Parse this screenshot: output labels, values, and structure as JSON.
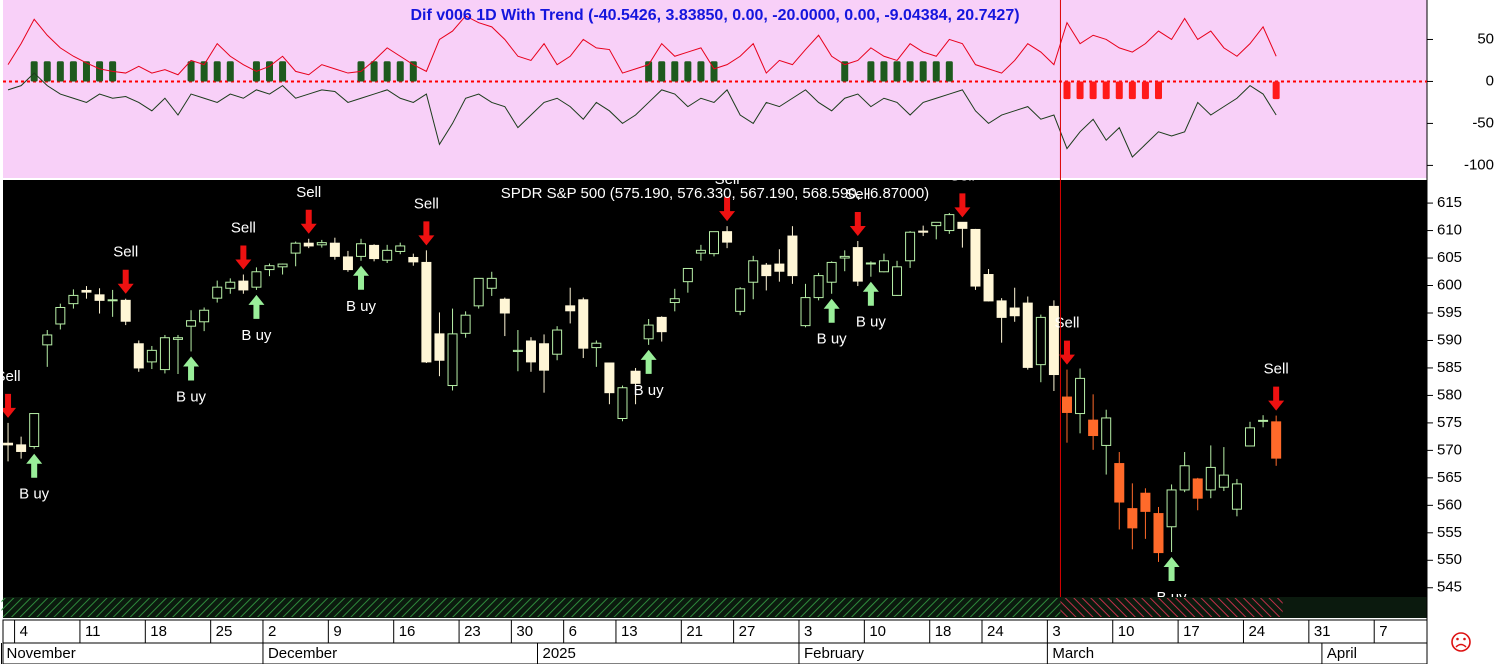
{
  "chart_data": [
    {
      "type": "indicator",
      "title": "Dif v006 1D With Trend (-40.5426, 3.83850, 0.00, -20.0000, 0.00, -9.04384, 20.7427)",
      "background": "#f8d0f8",
      "zero_line_color": "#ff0000",
      "ylim": [
        -115,
        97
      ],
      "yticks": [
        50,
        0,
        -50,
        -100
      ],
      "series": [
        {
          "color": "#e8001c",
          "values": [
            20,
            45,
            74,
            55,
            40,
            30,
            22,
            15,
            12,
            10,
            18,
            10,
            14,
            8,
            25,
            20,
            45,
            30,
            20,
            12,
            18,
            30,
            12,
            8,
            20,
            15,
            10,
            12,
            25,
            40,
            30,
            20,
            12,
            50,
            60,
            78,
            70,
            65,
            50,
            30,
            25,
            45,
            20,
            30,
            50,
            40,
            38,
            10,
            15,
            20,
            45,
            30,
            35,
            40,
            15,
            20,
            30,
            45,
            10,
            25,
            20,
            38,
            55,
            30,
            20,
            25,
            40,
            30,
            25,
            45,
            35,
            30,
            50,
            45,
            20,
            15,
            10,
            25,
            45,
            35,
            20,
            70,
            45,
            55,
            50,
            40,
            35,
            45,
            60,
            50,
            75,
            50,
            60,
            40,
            30,
            45,
            65,
            30,
            null,
            null,
            null,
            null,
            null,
            null,
            null,
            null,
            null,
            null,
            null
          ]
        },
        {
          "color": "#1c3c1c",
          "values": [
            -10,
            -5,
            10,
            -5,
            -15,
            -20,
            -25,
            -15,
            -20,
            -18,
            -25,
            -35,
            -20,
            -40,
            -15,
            -20,
            -25,
            -15,
            -20,
            -10,
            -15,
            -5,
            -20,
            -15,
            -10,
            -12,
            -25,
            -20,
            -15,
            -10,
            -20,
            -25,
            -15,
            -75,
            -50,
            -20,
            -15,
            -25,
            -30,
            -55,
            -40,
            -25,
            -20,
            -30,
            -45,
            -25,
            -35,
            -50,
            -40,
            -25,
            -10,
            -15,
            -30,
            -20,
            -25,
            -10,
            -40,
            -50,
            -25,
            -30,
            -20,
            -10,
            -25,
            -35,
            -20,
            -15,
            -30,
            -20,
            -25,
            -40,
            -25,
            -20,
            -15,
            -10,
            -35,
            -50,
            -40,
            -35,
            -30,
            -45,
            -40,
            -80,
            -60,
            -45,
            -70,
            -55,
            -90,
            -75,
            -60,
            -65,
            -60,
            -25,
            -40,
            -30,
            -20,
            -5,
            -15,
            -40,
            null,
            null,
            null,
            null,
            null,
            null,
            null,
            null,
            null,
            null,
            null
          ]
        }
      ],
      "bars": {
        "up_color": "#1e5a1e",
        "down_color": "#ff1a1a",
        "values": [
          null,
          null,
          24,
          24,
          24,
          24,
          24,
          24,
          24,
          null,
          null,
          null,
          null,
          null,
          24,
          24,
          24,
          24,
          null,
          24,
          24,
          24,
          null,
          null,
          null,
          null,
          null,
          24,
          24,
          24,
          24,
          24,
          null,
          null,
          null,
          null,
          null,
          null,
          null,
          null,
          null,
          null,
          null,
          null,
          null,
          null,
          null,
          null,
          null,
          24,
          24,
          24,
          24,
          24,
          24,
          null,
          null,
          null,
          null,
          null,
          null,
          null,
          null,
          null,
          24,
          null,
          24,
          24,
          24,
          24,
          24,
          24,
          24,
          null,
          null,
          null,
          null,
          null,
          null,
          null,
          null,
          -21,
          -21,
          -21,
          -21,
          -21,
          -21,
          -21,
          -21,
          null,
          null,
          null,
          null,
          null,
          null,
          null,
          null,
          -21,
          null,
          null,
          null,
          null,
          null,
          null,
          null,
          null,
          null,
          null,
          null
        ]
      }
    },
    {
      "type": "candlestick",
      "title": "SPDR S&P 500 (575.190, 576.330, 567.190, 568.590, -6.87000)",
      "background": "#000000",
      "up_color": "#b8f0a8",
      "categories": [
        null,
        "4",
        null,
        null,
        null,
        null,
        "11",
        null,
        null,
        null,
        null,
        "18",
        null,
        null,
        null,
        null,
        "25",
        null,
        null,
        null,
        "2",
        null,
        null,
        null,
        null,
        "9",
        null,
        null,
        null,
        null,
        "16",
        null,
        null,
        null,
        null,
        "23",
        null,
        null,
        null,
        "30",
        null,
        null,
        null,
        "6",
        null,
        null,
        null,
        "13",
        null,
        null,
        null,
        null,
        "21",
        null,
        null,
        null,
        "27",
        null,
        null,
        null,
        null,
        "3",
        null,
        null,
        null,
        null,
        "10",
        null,
        null,
        null,
        null,
        "18",
        null,
        null,
        null,
        "24",
        null,
        null,
        null,
        null,
        "3",
        null,
        null,
        null,
        null,
        "10",
        null,
        null,
        null,
        null,
        "17",
        null,
        null,
        null,
        null,
        "24",
        null,
        null,
        null,
        null,
        "31",
        null,
        null,
        null,
        null,
        "7",
        null,
        null,
        null
      ],
      "month_labels": [
        {
          "index": 0,
          "label": "November"
        },
        {
          "index": 20,
          "label": "December"
        },
        {
          "index": 41,
          "label": "2025"
        },
        {
          "index": 61,
          "label": "February"
        },
        {
          "index": 80,
          "label": "March"
        },
        {
          "index": 101,
          "label": "April"
        }
      ],
      "open": [
        571.3,
        571,
        570.7,
        589.2,
        593,
        596.7,
        599.1,
        598.3,
        597.4,
        597.3,
        589.4,
        586.1,
        584.7,
        590.2,
        592.6,
        593.4,
        597.7,
        599.5,
        600.8,
        599.7,
        602.9,
        603.4,
        605.9,
        607.7,
        607.4,
        607.7,
        605.2,
        605.3,
        607.3,
        604.6,
        606.2,
        605.1,
        604.2,
        591.2,
        581.8,
        591.3,
        596.3,
        599.5,
        597.5,
        588,
        589.9,
        589.4,
        587.5,
        596.3,
        597.4,
        588.7,
        585.9,
        575.8,
        584.4,
        590.3,
        594.2,
        596.9,
        600.7,
        605.9,
        605.8,
        609.8,
        595.3,
        600.6,
        603.7,
        603.9,
        609,
        592.7,
        597.8,
        600.6,
        605,
        606.9,
        604,
        602.5,
        598.2,
        604.5,
        609.9,
        610.9,
        610,
        611.5,
        610.2,
        602,
        597.2,
        595.9,
        596.8,
        585.6,
        596.2,
        579.7,
        576.7,
        575.5,
        570.9,
        567.6,
        559.4,
        562.2,
        558.5,
        556.1,
        562.8,
        564.8,
        562.8,
        563.3,
        559.3,
        570.8,
        575.3,
        575.19,
        null,
        null,
        null,
        null,
        null,
        null,
        null,
        null,
        null,
        null,
        null
      ],
      "high": [
        575,
        572.5,
        576.7,
        591.9,
        596.7,
        599.3,
        599.9,
        599.5,
        599.2,
        597.6,
        590,
        589,
        591,
        591,
        595.5,
        596,
        600.9,
        601.3,
        602,
        603.3,
        604,
        604,
        608,
        608.5,
        608.3,
        608.7,
        606.3,
        608.5,
        607.5,
        607.4,
        607.8,
        605.8,
        606.4,
        595.1,
        595.8,
        595.3,
        601.3,
        602.5,
        597.8,
        591.9,
        590.6,
        591.1,
        592.6,
        599.6,
        597.8,
        590,
        585.9,
        581.8,
        585,
        593.9,
        594.4,
        599.4,
        603.1,
        607.4,
        609.8,
        610.8,
        599.7,
        605.4,
        604.1,
        606.6,
        610.8,
        600.3,
        602.3,
        604.4,
        606.4,
        608.1,
        604.4,
        605.8,
        604.5,
        609.9,
        610.9,
        611.5,
        613.2,
        611.5,
        610.3,
        603,
        597.7,
        599.6,
        598,
        594.7,
        597.3,
        584.7,
        584.9,
        580.2,
        577.4,
        569.7,
        564,
        563.1,
        559.7,
        563.8,
        569.7,
        565,
        570.9,
        570.6,
        564.8,
        575.2,
        576.4,
        576.33,
        null,
        null,
        null,
        null,
        null,
        null,
        null,
        null,
        null,
        null,
        null
      ],
      "low": [
        568,
        568.5,
        570.3,
        585.2,
        592,
        595.8,
        597.6,
        594.9,
        594.3,
        592.8,
        584.3,
        584.8,
        584,
        583.9,
        588,
        591.7,
        596.9,
        598.5,
        598.5,
        599.2,
        601.7,
        602,
        603.5,
        606.8,
        606.9,
        604.7,
        602.5,
        604.5,
        604.4,
        604.1,
        605.7,
        603.6,
        585.9,
        583.5,
        580.9,
        590.5,
        595.8,
        598.1,
        590.8,
        584.4,
        584.3,
        580.5,
        586.4,
        593.1,
        586.8,
        585.2,
        578.4,
        575.3,
        578.4,
        589.2,
        589.8,
        595.3,
        598.7,
        604.5,
        605.3,
        606.8,
        594.6,
        597.5,
        599.1,
        600.7,
        600.3,
        592.4,
        597.3,
        598.5,
        602.6,
        599.9,
        601.6,
        602.4,
        598.1,
        603.2,
        609,
        608.4,
        609.4,
        606.9,
        599.2,
        597.1,
        589.6,
        593.4,
        584.7,
        582.4,
        580.8,
        571.4,
        573.1,
        570.1,
        565.6,
        555.6,
        552,
        553.9,
        549.7,
        551.5,
        562.4,
        559.1,
        561.3,
        562.6,
        558,
        570.8,
        574.2,
        567.19,
        null,
        null,
        null,
        null,
        null,
        null,
        null,
        null,
        null,
        null,
        null
      ],
      "close": [
        571,
        569.8,
        576.7,
        591,
        596,
        598.2,
        598.8,
        597.3,
        597.4,
        593.5,
        585,
        588.2,
        590.5,
        590.5,
        593.6,
        595.5,
        599.7,
        600.6,
        599.2,
        602.5,
        603.6,
        603.9,
        607.7,
        607.2,
        607.8,
        605.3,
        602.9,
        607.6,
        604.9,
        606.4,
        607.2,
        604.3,
        586.1,
        586.4,
        591.2,
        594.6,
        601.3,
        601.3,
        595,
        588.2,
        586.1,
        584.6,
        591.9,
        595.4,
        588.6,
        589.5,
        580.5,
        581.4,
        582.2,
        592.8,
        591.6,
        597.6,
        603.1,
        606.4,
        609.8,
        607.9,
        599.4,
        604.5,
        601.8,
        602.6,
        601.8,
        597.8,
        601.8,
        604.2,
        605.3,
        600.8,
        604.1,
        604.5,
        603.4,
        609.7,
        609.7,
        611.5,
        612.9,
        610.4,
        599.9,
        597.2,
        594.2,
        594.5,
        585.1,
        594.2,
        583.8,
        576.9,
        583.1,
        572.7,
        575.9,
        560.6,
        555.9,
        558.9,
        551.4,
        562.8,
        567.2,
        561.3,
        566.9,
        565.5,
        563.9,
        574.1,
        575.46,
        568.59,
        null,
        null,
        null,
        null,
        null,
        null,
        null,
        null,
        null,
        null,
        null
      ],
      "ylim": [
        543.5,
        619.2
      ],
      "yticks": [
        545,
        550,
        555,
        560,
        565,
        570,
        575,
        580,
        585,
        590,
        595,
        600,
        605,
        610,
        615
      ],
      "trend_zones": [
        {
          "start": 0,
          "end": 80,
          "color": "#2f8a3c",
          "down_color": "#fff6d6"
        },
        {
          "start": 81,
          "end": 97,
          "color": "#c0304a",
          "down_color": "#ff6a2a"
        }
      ],
      "signals": [
        {
          "index": 0,
          "label": "Sell",
          "color": "#ee1111",
          "direction": "down"
        },
        {
          "index": 2,
          "label": "B uy",
          "color": "#99ee99",
          "direction": "up"
        },
        {
          "index": 9,
          "label": "Sell",
          "color": "#ee1111",
          "direction": "down"
        },
        {
          "index": 14,
          "label": "B uy",
          "color": "#99ee99",
          "direction": "up"
        },
        {
          "index": 18,
          "label": "Sell",
          "color": "#ee1111",
          "direction": "down"
        },
        {
          "index": 19,
          "label": "B uy",
          "color": "#99ee99",
          "direction": "up"
        },
        {
          "index": 23,
          "label": "Sell",
          "color": "#ee1111",
          "direction": "down"
        },
        {
          "index": 27,
          "label": "B uy",
          "color": "#99ee99",
          "direction": "up"
        },
        {
          "index": 32,
          "label": "Sell",
          "color": "#ee1111",
          "direction": "down"
        },
        {
          "index": 49,
          "label": "B uy",
          "color": "#99ee99",
          "direction": "up"
        },
        {
          "index": 55,
          "label": "Sell",
          "color": "#ee1111",
          "direction": "down"
        },
        {
          "index": 63,
          "label": "B uy",
          "color": "#99ee99",
          "direction": "up"
        },
        {
          "index": 65,
          "label": "Sell",
          "color": "#ee1111",
          "direction": "down"
        },
        {
          "index": 66,
          "label": "B uy",
          "color": "#99ee99",
          "direction": "up"
        },
        {
          "index": 73,
          "label": "Sell",
          "color": "#ee1111",
          "direction": "down"
        },
        {
          "index": 81,
          "label": "Sell",
          "color": "#ee1111",
          "direction": "down"
        },
        {
          "index": 89,
          "label": "B uy",
          "color": "#99ee99",
          "direction": "up"
        },
        {
          "index": 97,
          "label": "Sell",
          "color": "#ee1111",
          "direction": "down"
        }
      ]
    }
  ]
}
